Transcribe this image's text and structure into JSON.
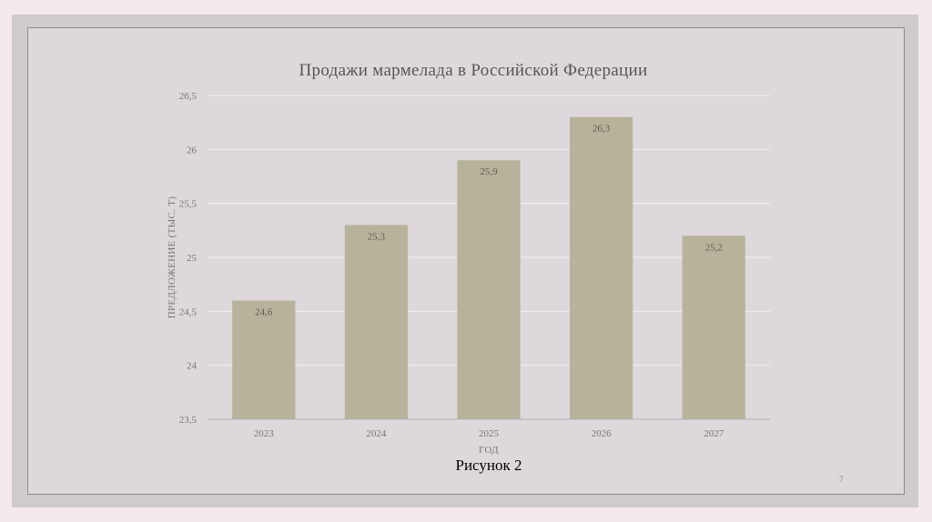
{
  "slide": {
    "caption": "Рисунок 2",
    "page_number": "7"
  },
  "colors": {
    "bar": "#b7b39a",
    "grid": "#f2eef0",
    "axis": "#b5b0b3",
    "slide_bg": "#ded8dc"
  },
  "chart_data": {
    "type": "bar",
    "title": "Продажи мармелада в Российской Федерации",
    "xlabel": "ГОД",
    "ylabel": "ПРЕДЛОЖЕНИЕ (ТЫС. Т)",
    "categories": [
      "2023",
      "2024",
      "2025",
      "2026",
      "2027"
    ],
    "values": [
      24.6,
      25.3,
      25.9,
      26.3,
      25.2
    ],
    "data_labels": [
      "24,6",
      "25,3",
      "25,9",
      "26,3",
      "25,2"
    ],
    "ylim": [
      23.5,
      26.5
    ],
    "yticks": [
      23.5,
      24,
      24.5,
      25,
      25.5,
      26,
      26.5
    ],
    "ytick_labels": [
      "23,5",
      "24",
      "24,5",
      "25",
      "25,5",
      "26",
      "26,5"
    ],
    "grid": true,
    "legend": "none"
  }
}
